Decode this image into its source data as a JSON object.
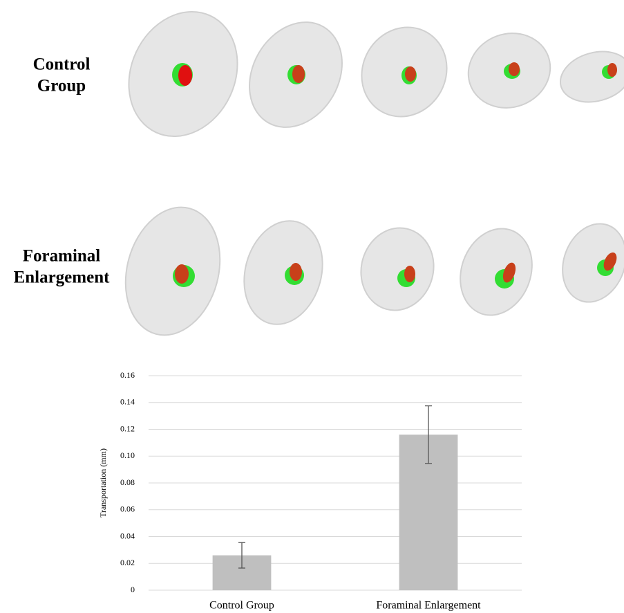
{
  "figure": {
    "row_labels": [
      [
        "Control",
        "Group"
      ],
      [
        "Foraminal",
        "Enlargement"
      ]
    ]
  },
  "chart_data": {
    "type": "bar",
    "y_label": "Transportation (mm)",
    "categories": [
      "Control Group",
      "Foraminal Enlargement"
    ],
    "values": [
      0.026,
      0.116
    ],
    "errors": [
      0.0095,
      0.0215
    ],
    "color": "#bfbfbf",
    "ylim": [
      0,
      0.16
    ],
    "yticks": [
      0,
      0.02,
      0.04,
      0.06,
      0.08,
      {
        "value": 0.1,
        "label": "0.10"
      },
      0.12,
      0.14,
      0.16
    ],
    "grid": true
  }
}
